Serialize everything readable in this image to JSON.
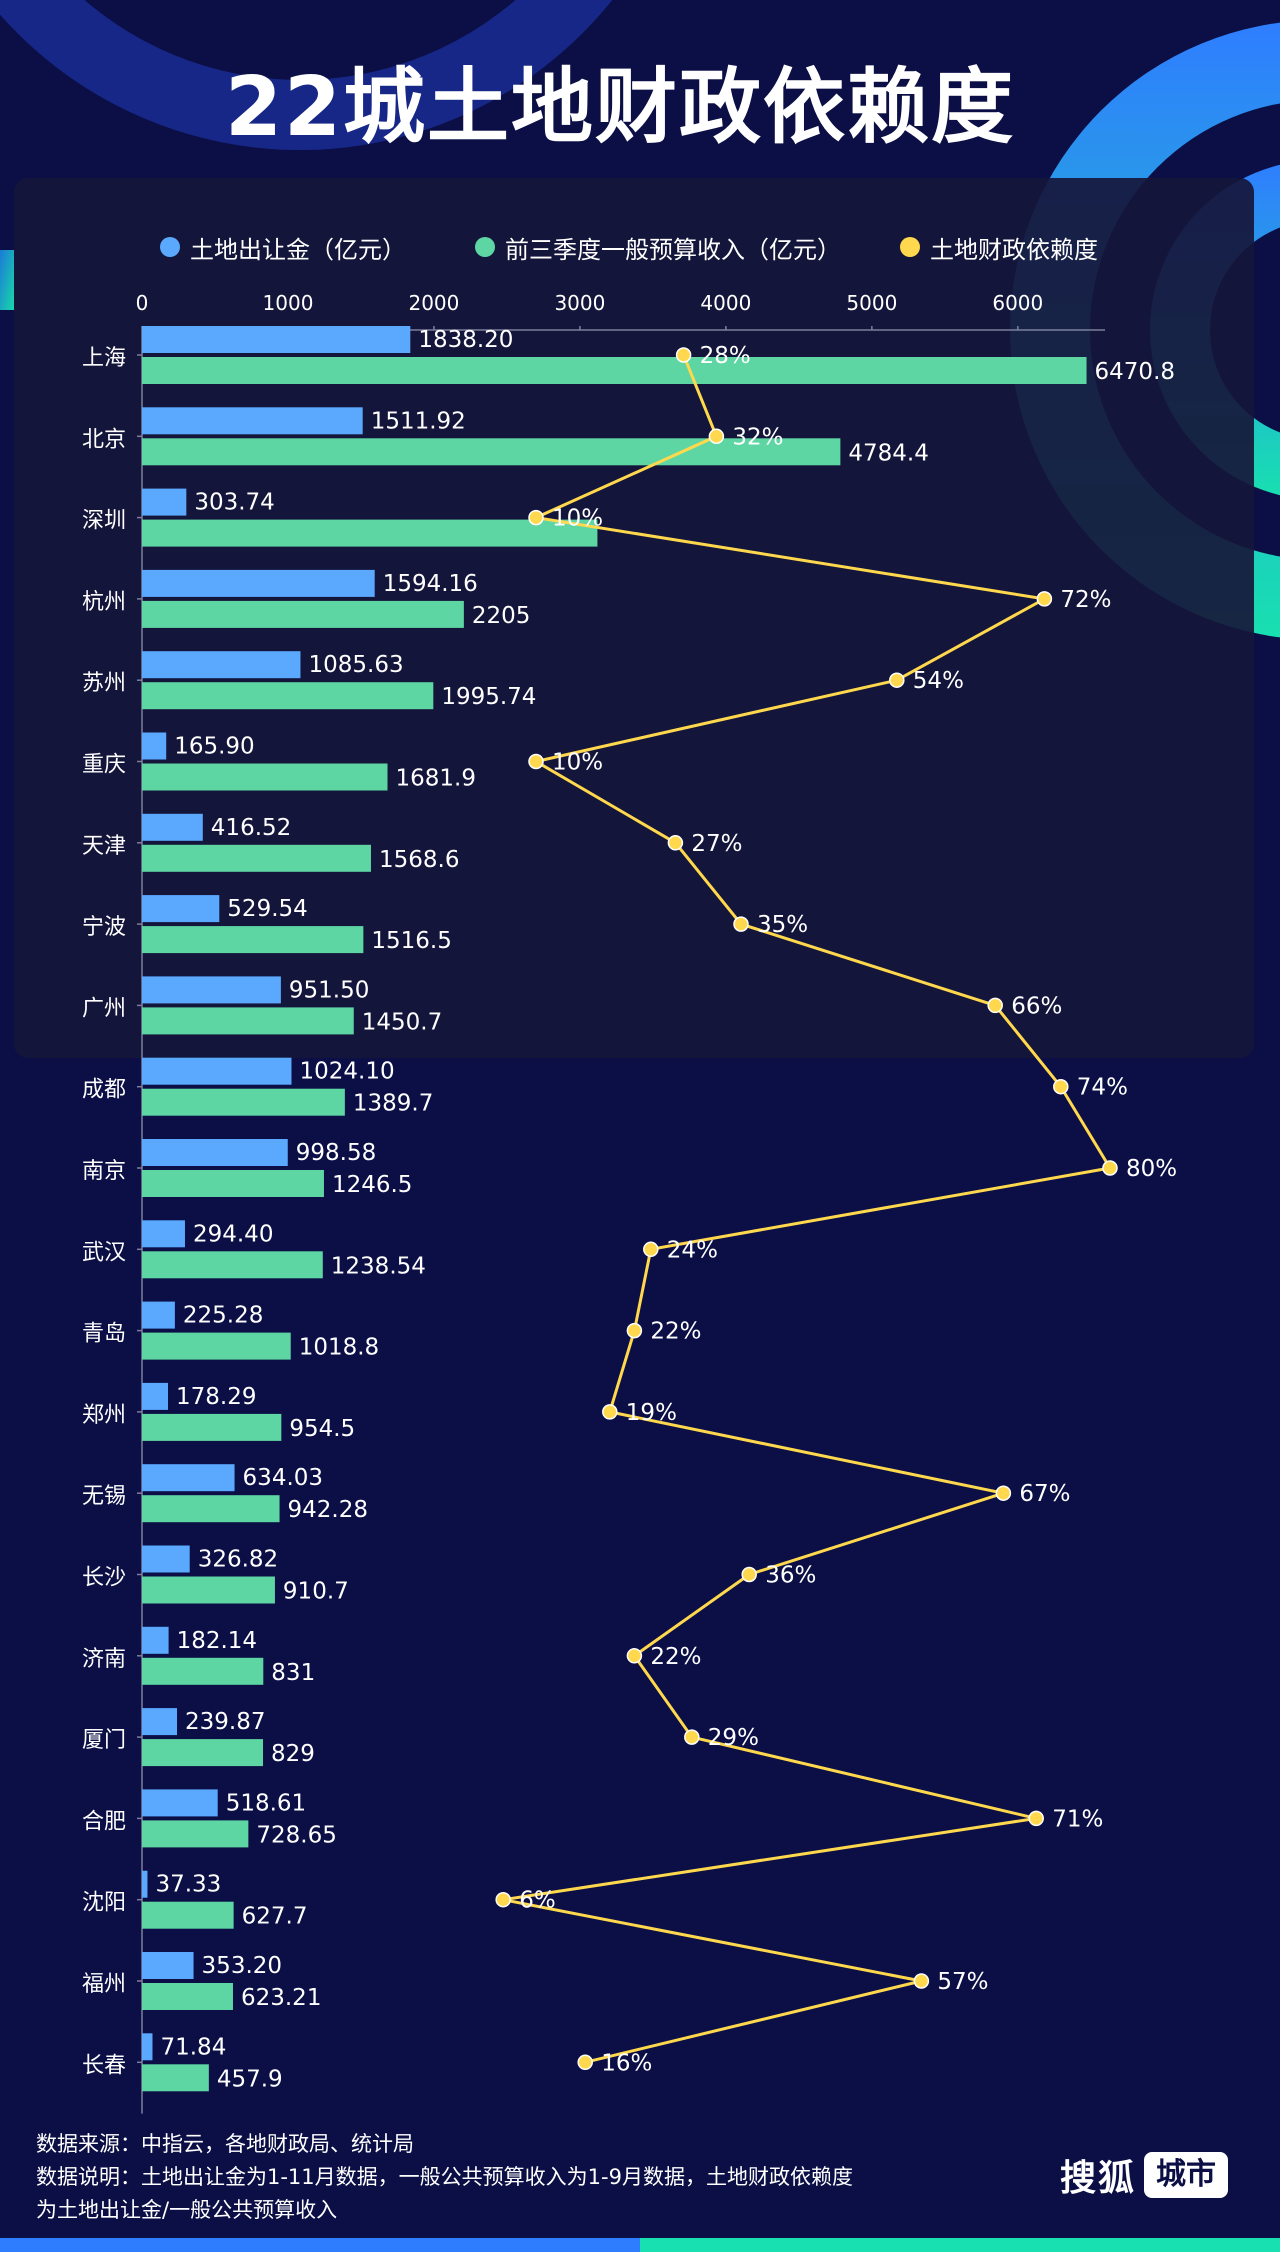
{
  "title": "22城土地财政依赖度",
  "legend": [
    {
      "label": "土地出让金（亿元）",
      "color": "#5aa9ff"
    },
    {
      "label": "前三季度一般预算收入（亿元）",
      "color": "#5ed6a4"
    },
    {
      "label": "土地财政依赖度",
      "color": "#ffd84d"
    }
  ],
  "chart_data": {
    "type": "bar",
    "orientation": "horizontal",
    "x_ticks": [
      "0",
      "1000",
      "2000",
      "3000",
      "4000",
      "5000",
      "6000"
    ],
    "xlim": [
      0,
      6700
    ],
    "categories": [
      "上海",
      "北京",
      "深圳",
      "杭州",
      "苏州",
      "重庆",
      "天津",
      "宁波",
      "广州",
      "成都",
      "南京",
      "武汉",
      "青岛",
      "郑州",
      "无锡",
      "长沙",
      "济南",
      "厦门",
      "合肥",
      "沈阳",
      "福州",
      "长春"
    ],
    "series": [
      {
        "name": "土地出让金（亿元）",
        "color": "#5aa9ff",
        "values": [
          1838.2,
          1511.92,
          303.74,
          1594.16,
          1085.63,
          165.9,
          416.52,
          529.54,
          951.5,
          1024.1,
          998.58,
          294.4,
          225.28,
          178.29,
          634.03,
          326.82,
          182.14,
          239.87,
          518.61,
          37.33,
          353.2,
          71.84
        ],
        "labels": [
          "1838.20",
          "1511.92",
          "303.74",
          "1594.16",
          "1085.63",
          "165.90",
          "416.52",
          "529.54",
          "951.50",
          "1024.10",
          "998.58",
          "294.40",
          "225.28",
          "178.29",
          "634.03",
          "326.82",
          "182.14",
          "239.87",
          "518.61",
          "37.33",
          "353.20",
          "71.84"
        ]
      },
      {
        "name": "前三季度一般预算收入（亿元）",
        "color": "#5ed6a4",
        "values": [
          6470.8,
          4784.4,
          3120,
          2205,
          1995.74,
          1681.9,
          1568.6,
          1516.5,
          1450.7,
          1389.7,
          1246.5,
          1238.54,
          1018.8,
          954.5,
          942.28,
          910.7,
          831,
          829,
          728.65,
          627.7,
          623.21,
          457.9
        ],
        "labels": [
          "6470.8",
          "4784.4",
          "",
          "2205",
          "1995.74",
          "1681.9",
          "1568.6",
          "1516.5",
          "1450.7",
          "1389.7",
          "1246.5",
          "1238.54",
          "1018.8",
          "954.5",
          "942.28",
          "910.7",
          "831",
          "829",
          "728.65",
          "627.7",
          "623.21",
          "457.9"
        ]
      },
      {
        "name": "土地财政依赖度",
        "type": "line",
        "color": "#ffd84d",
        "unit": "%",
        "values": [
          28,
          32,
          10,
          72,
          54,
          10,
          27,
          35,
          66,
          74,
          80,
          24,
          22,
          19,
          67,
          36,
          22,
          29,
          71,
          6,
          57,
          16
        ],
        "labels": [
          "28%",
          "32%",
          "10%",
          "72%",
          "54%",
          "10%",
          "27%",
          "35%",
          "66%",
          "74%",
          "80%",
          "24%",
          "22%",
          "19%",
          "67%",
          "36%",
          "22%",
          "29%",
          "71%",
          "6%",
          "57%",
          "16%"
        ]
      }
    ]
  },
  "footer": {
    "line1": "数据来源：中指云，各地财政局、统计局",
    "line2": "数据说明：土地出让金为1-11月数据，一般公共预算收入为1-9月数据，土地财政依赖度",
    "line3": "为土地出让金/一般公共预算收入"
  },
  "logo": {
    "main": "搜狐",
    "box": "城市"
  },
  "colors": {
    "background": "#0b0f45",
    "panel": "#16163a",
    "accent_blue": "#2a7cff",
    "accent_teal": "#14d6b0"
  }
}
